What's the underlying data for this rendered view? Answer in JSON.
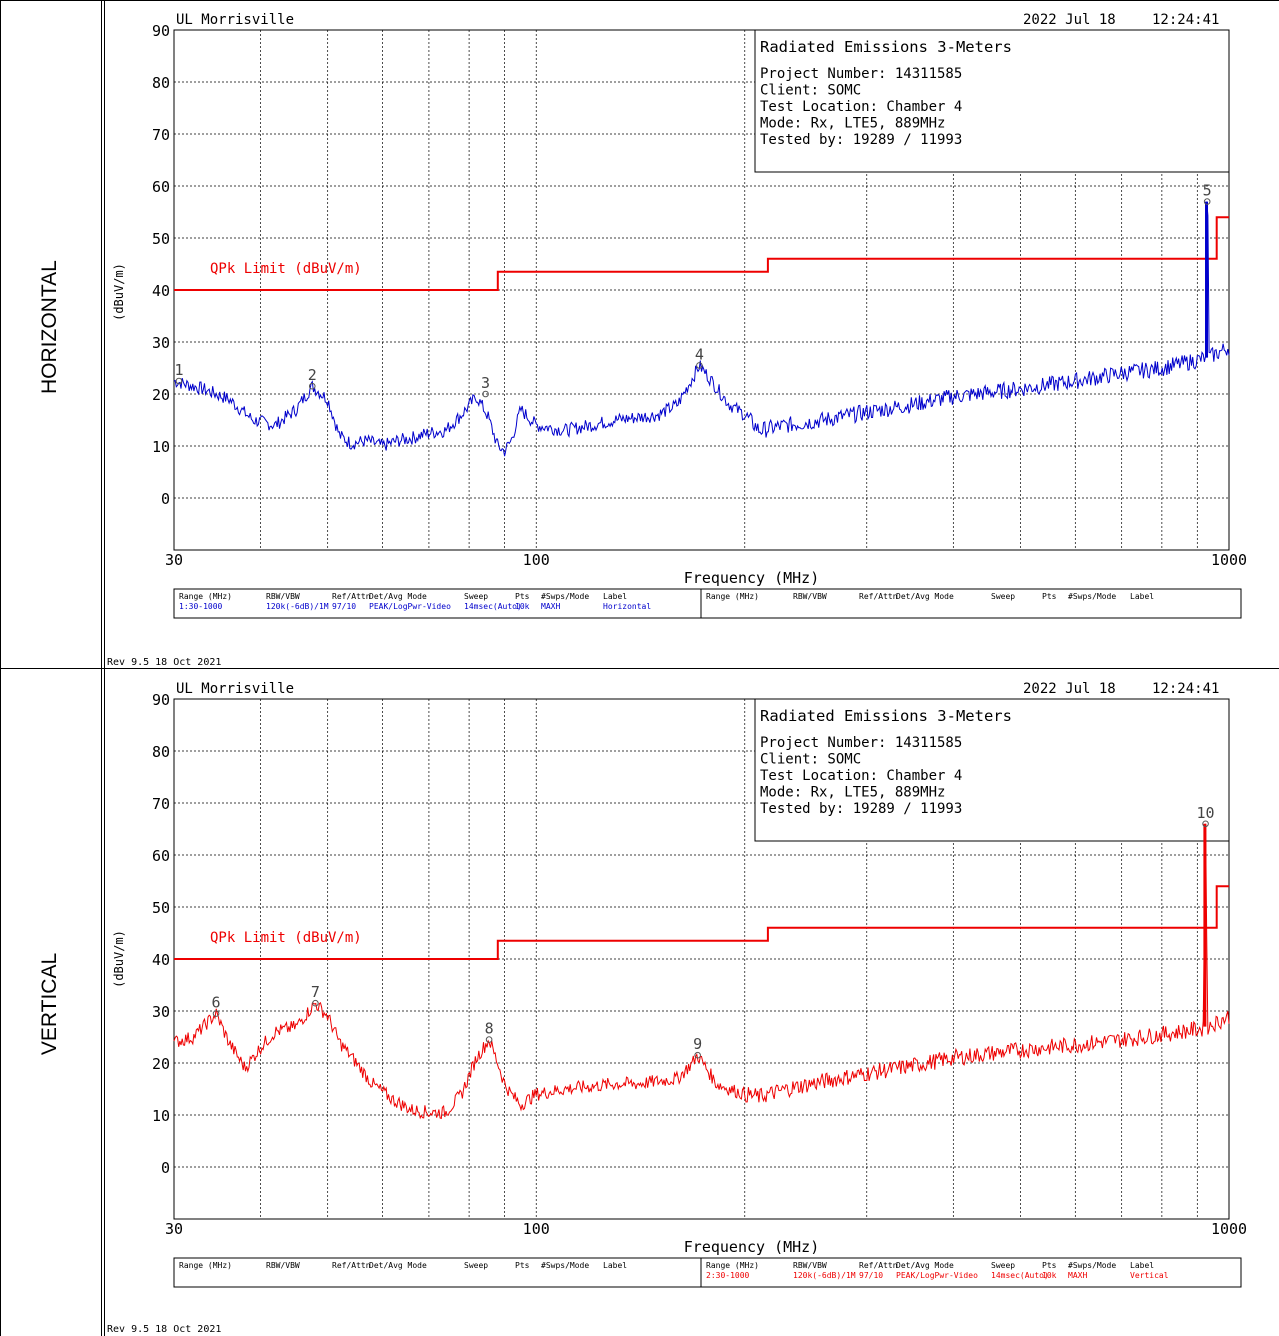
{
  "panels": [
    {
      "side_label": "HORIZONTAL",
      "site": "UL Morrisville",
      "date": "2022 Jul 18",
      "time": "12:24:41",
      "info": {
        "title": "Radiated Emissions 3-Meters",
        "lines": [
          "Project Number: 14311585",
          "Client: SOMC",
          "Test Location: Chamber 4",
          "Mode: Rx, LTE5, 889MHz",
          "Tested by: 19289 / 11993"
        ]
      },
      "limit_label": "QPk Limit (dBuV/m)",
      "ylabel": "(dBuV/m)",
      "xlabel": "Frequency (MHz)",
      "trace_color": "#0000cc",
      "markers": [
        {
          "num": "1",
          "freq": 30.5,
          "level": 22.5
        },
        {
          "num": "2",
          "freq": 47.5,
          "level": 21.5
        },
        {
          "num": "3",
          "freq": 84.5,
          "level": 20.0
        },
        {
          "num": "4",
          "freq": 172,
          "level": 25.5
        },
        {
          "num": "5",
          "freq": 930,
          "level": 57.0
        }
      ],
      "table": {
        "headers": [
          "Range (MHz)",
          "RBW/VBW",
          "Ref/Attn",
          "Det/Avg Mode",
          "Sweep",
          "Pts",
          "#Swps/Mode",
          "Label"
        ],
        "left_row": [
          "1:30-1000",
          "120k(-6dB)/1M",
          "97/10",
          "PEAK/LogPwr-Video",
          "14msec(Auto)",
          "10k",
          "MAXH",
          "Horizontal"
        ],
        "right_row": [
          "",
          "",
          "",
          "",
          "",
          "",
          "",
          ""
        ],
        "row_color": "#0000cc"
      },
      "rev": "Rev 9.5 18 Oct 2021"
    },
    {
      "side_label": "VERTICAL",
      "site": "UL Morrisville",
      "date": "2022 Jul 18",
      "time": "12:24:41",
      "info": {
        "title": "Radiated Emissions 3-Meters",
        "lines": [
          "Project Number: 14311585",
          "Client: SOMC",
          "Test Location: Chamber 4",
          "Mode: Rx, LTE5, 889MHz",
          "Tested by: 19289 / 11993"
        ]
      },
      "limit_label": "QPk Limit (dBuV/m)",
      "ylabel": "(dBuV/m)",
      "xlabel": "Frequency (MHz)",
      "trace_color": "#ee0000",
      "markers": [
        {
          "num": "6",
          "freq": 34.5,
          "level": 29.5
        },
        {
          "num": "7",
          "freq": 48,
          "level": 31.5
        },
        {
          "num": "8",
          "freq": 85.5,
          "level": 24.5
        },
        {
          "num": "9",
          "freq": 171,
          "level": 21.5
        },
        {
          "num": "10",
          "freq": 925,
          "level": 66.0
        }
      ],
      "table": {
        "headers": [
          "Range (MHz)",
          "RBW/VBW",
          "Ref/Attn",
          "Det/Avg Mode",
          "Sweep",
          "Pts",
          "#Swps/Mode",
          "Label"
        ],
        "left_row": [
          "",
          "",
          "",
          "",
          "",
          "",
          "",
          ""
        ],
        "right_row": [
          "2:30-1000",
          "120k(-6dB)/1M",
          "97/10",
          "PEAK/LogPwr-Video",
          "14msec(Auto)",
          "10k",
          "MAXH",
          "Vertical"
        ],
        "row_color": "#ee0000"
      },
      "rev": "Rev 9.5 18 Oct 2021"
    }
  ],
  "chart_data": [
    {
      "type": "line",
      "title": "Radiated Emissions 3-Meters",
      "xlabel": "Frequency (MHz)",
      "ylabel": "(dBuV/m)",
      "x_scale": "log",
      "xlim": [
        30,
        1000
      ],
      "ylim": [
        -10,
        90
      ],
      "x_tick_labels": [
        "30",
        "100",
        "1000"
      ],
      "y_ticks": [
        90,
        80,
        70,
        60,
        50,
        40,
        30,
        20,
        10,
        0
      ],
      "grid": true,
      "series": [
        {
          "name": "QPk Limit (dBuV/m)",
          "color": "#ee0000",
          "x": [
            30,
            88,
            88,
            216,
            216,
            960,
            960,
            1000
          ],
          "y": [
            40,
            40,
            43.5,
            43.5,
            46,
            46,
            54,
            54
          ]
        },
        {
          "name": "Horizontal",
          "color": "#0000cc",
          "x": [
            30,
            33,
            36,
            39,
            42,
            45,
            47.5,
            50,
            52,
            54,
            57,
            60,
            63,
            66,
            70,
            74,
            78,
            82,
            85,
            88,
            90,
            92,
            95,
            100,
            110,
            120,
            130,
            140,
            150,
            160,
            168,
            172,
            178,
            185,
            190,
            200,
            210,
            230,
            260,
            300,
            350,
            400,
            500,
            600,
            700,
            800,
            900,
            925,
            928,
            932,
            935,
            950,
            1000
          ],
          "y": [
            22.5,
            21,
            19,
            15,
            14,
            17,
            21.5,
            19,
            12,
            10.5,
            11,
            10,
            11,
            11.5,
            12.5,
            13,
            16,
            19.5,
            16,
            10,
            9,
            11,
            17,
            14,
            13,
            14,
            15,
            15.5,
            16,
            18,
            23,
            25.5,
            23,
            20,
            18,
            16,
            13,
            14,
            15,
            16.5,
            18,
            19.5,
            21,
            22.5,
            24,
            25,
            26.5,
            27,
            57,
            57,
            27,
            27.5,
            29
          ]
        },
        {
          "name": "Vertical",
          "color": "#ee0000",
          "x": [
            30,
            32,
            34.5,
            36,
            38,
            40,
            42,
            45,
            48,
            50,
            52,
            55,
            58,
            62,
            66,
            70,
            74,
            78,
            82,
            85.5,
            88,
            90,
            92,
            95,
            100,
            110,
            120,
            130,
            140,
            150,
            160,
            168,
            171,
            176,
            182,
            190,
            200,
            210,
            230,
            260,
            300,
            350,
            400,
            500,
            600,
            700,
            800,
            900,
            920,
            923,
            927,
            930,
            950,
            1000
          ],
          "y": [
            24,
            25,
            29.5,
            24,
            19,
            23,
            26,
            27,
            31.5,
            29,
            24,
            20,
            16,
            13,
            11,
            10.5,
            10.5,
            14,
            21,
            24.5,
            20,
            16,
            14,
            12,
            14,
            15,
            15.5,
            16,
            16,
            16.5,
            17,
            20,
            21.5,
            19,
            16,
            15,
            14,
            13.5,
            15,
            16.5,
            18,
            19.5,
            21,
            22.5,
            23.5,
            24.5,
            25.5,
            26.5,
            26.5,
            66,
            66,
            27,
            27.5,
            29
          ]
        }
      ]
    },
    {
      "type": "line",
      "note_labels": []
    }
  ]
}
